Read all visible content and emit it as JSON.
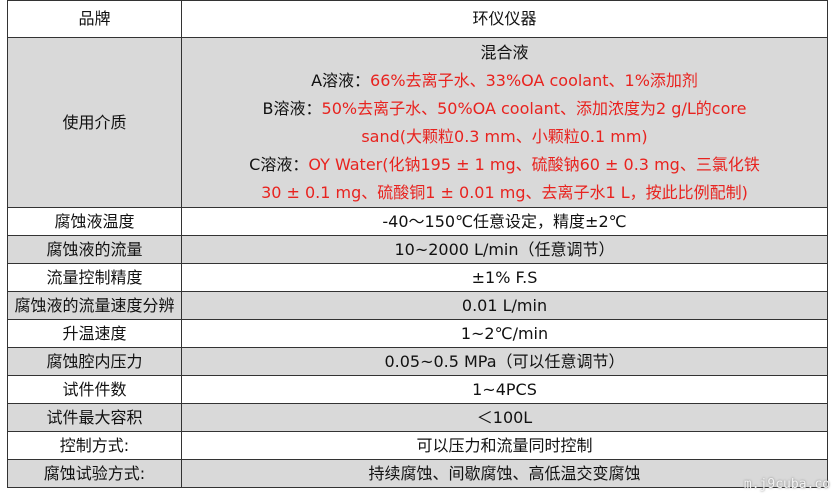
{
  "header": {
    "key": "品牌",
    "value": "环仪仪器"
  },
  "media": {
    "key": "使用介质",
    "title": "混合液",
    "a_label": "A溶液：",
    "a_text": "66%去离子水、33%OA coolant、1%添加剂",
    "b_label": "B溶液：",
    "b_text": "50%去离子水、50%OA coolant、添加浓度为2 g/L的core",
    "b_text2": "sand(大颗粒0.3 mm、小颗粒0.1 mm)",
    "c_label": "C溶液：",
    "c_text": "OY Water(化钠195 ± 1 mg、硫酸钠60 ± 0.3 mg、三氯化铁",
    "c_text2": "30 ± 0.1 mg、硫酸铜1 ± 0.01 mg、去离子水1 L，按此比例配制)"
  },
  "rows": [
    {
      "key": "腐蚀液温度",
      "value": "-40～150℃任意设定，精度±2℃"
    },
    {
      "key": "腐蚀液的流量",
      "value": "10~2000 L/min（任意调节）"
    },
    {
      "key": "流量控制精度",
      "value": "±1% F.S"
    },
    {
      "key": "腐蚀液的流量速度分辨",
      "value": "0.01 L/min"
    },
    {
      "key": "升温速度",
      "value": "1~2℃/min"
    },
    {
      "key": "腐蚀腔内压力",
      "value": "0.05~0.5 MPa（可以任意调节）"
    },
    {
      "key": "试件件数",
      "value": "1~4PCS"
    },
    {
      "key": "试件最大容积",
      "value": "＜100L"
    },
    {
      "key": "控制方式:",
      "value": "可以压力和流量同时控制"
    },
    {
      "key": "腐蚀试验方式:",
      "value": "持续腐蚀、间歇腐蚀、高低温交变腐蚀"
    }
  ],
  "watermark": "m.j9cuba.co",
  "colors": {
    "highlight": "#e8231f",
    "alt_row": "#d9d9d9"
  }
}
